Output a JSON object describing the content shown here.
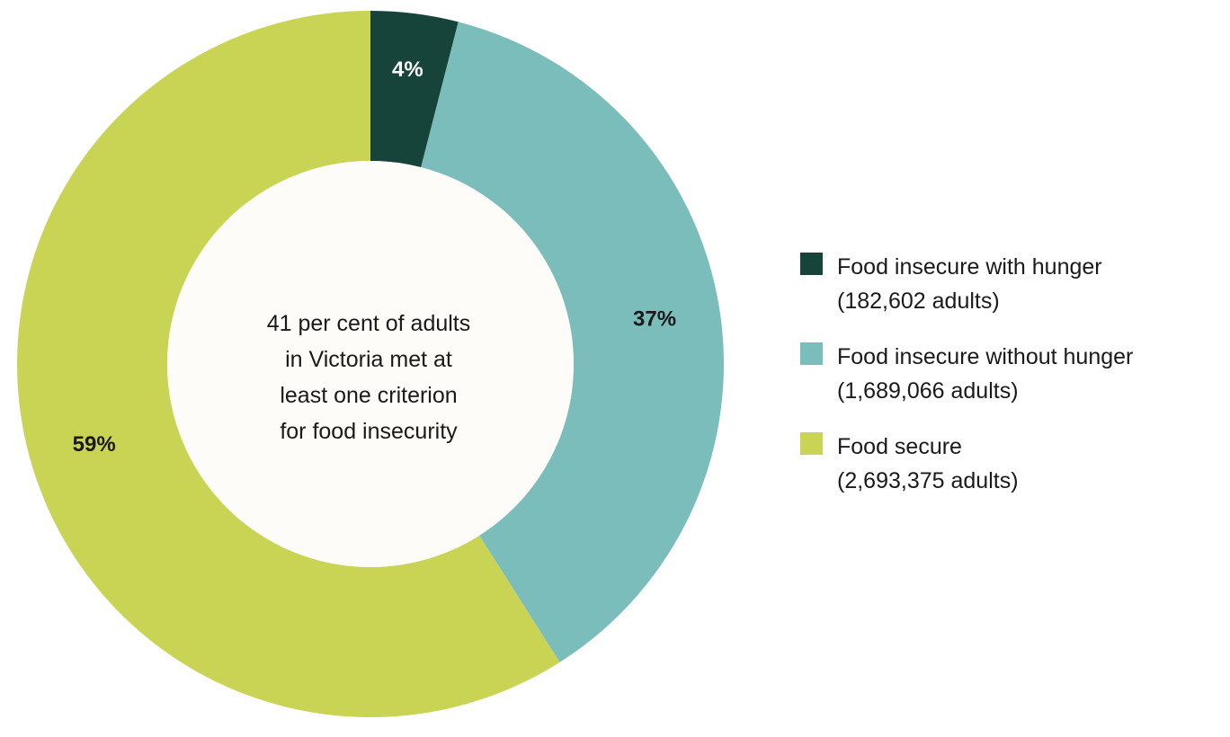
{
  "chart_data": {
    "type": "pie",
    "subtype": "donut",
    "center_text": [
      "41 per cent of adults",
      "in Victoria met at",
      "least one criterion",
      "for food insecurity"
    ],
    "slices": [
      {
        "name": "Food insecure with hunger",
        "count_label": "(182,602 adults)",
        "count": 182602,
        "value": 4,
        "label": "4%",
        "color": "#16443a",
        "label_color": "#ffffff"
      },
      {
        "name": "Food insecure without hunger",
        "count_label": "(1,689,066 adults)",
        "count": 1689066,
        "value": 37,
        "label": "37%",
        "color": "#7bbdbb",
        "label_color": "#1a1a1a"
      },
      {
        "name": "Food secure",
        "count_label": "(2,693,375 adults)",
        "count": 2693375,
        "value": 59,
        "label": "59%",
        "color": "#c9d455",
        "label_color": "#1a1a1a"
      }
    ],
    "legend_position": "right"
  }
}
